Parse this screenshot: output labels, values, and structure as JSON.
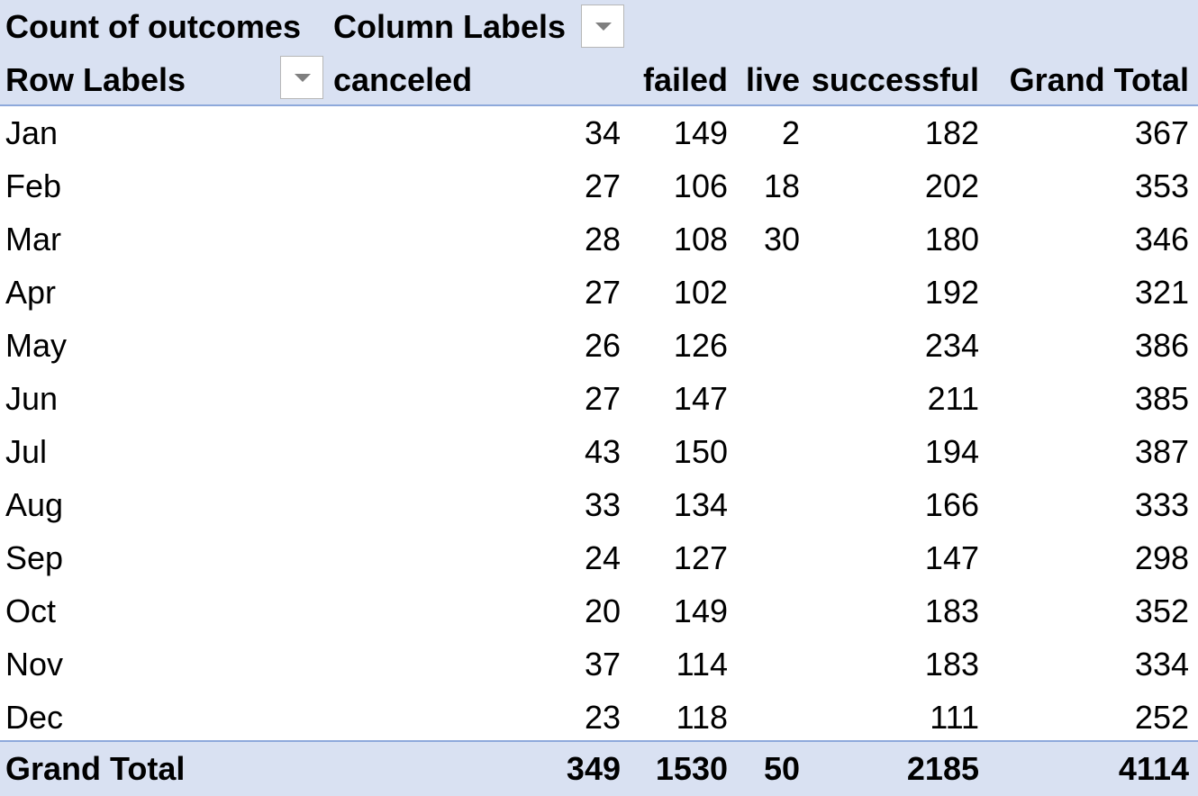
{
  "pivot": {
    "value_field": "Count of outcomes",
    "column_labels": "Column Labels",
    "row_labels": "Row Labels",
    "columns": [
      "canceled",
      "failed",
      "live",
      "successful",
      "Grand Total"
    ],
    "rows": [
      {
        "label": "Jan",
        "values": [
          "34",
          "149",
          "2",
          "182",
          "367"
        ]
      },
      {
        "label": "Feb",
        "values": [
          "27",
          "106",
          "18",
          "202",
          "353"
        ]
      },
      {
        "label": "Mar",
        "values": [
          "28",
          "108",
          "30",
          "180",
          "346"
        ]
      },
      {
        "label": "Apr",
        "values": [
          "27",
          "102",
          "",
          "192",
          "321"
        ]
      },
      {
        "label": "May",
        "values": [
          "26",
          "126",
          "",
          "234",
          "386"
        ]
      },
      {
        "label": "Jun",
        "values": [
          "27",
          "147",
          "",
          "211",
          "385"
        ]
      },
      {
        "label": "Jul",
        "values": [
          "43",
          "150",
          "",
          "194",
          "387"
        ]
      },
      {
        "label": "Aug",
        "values": [
          "33",
          "134",
          "",
          "166",
          "333"
        ]
      },
      {
        "label": "Sep",
        "values": [
          "24",
          "127",
          "",
          "147",
          "298"
        ]
      },
      {
        "label": "Oct",
        "values": [
          "20",
          "149",
          "",
          "183",
          "352"
        ]
      },
      {
        "label": "Nov",
        "values": [
          "37",
          "114",
          "",
          "183",
          "334"
        ]
      },
      {
        "label": "Dec",
        "values": [
          "23",
          "118",
          "",
          "111",
          "252"
        ]
      }
    ],
    "grand_total": {
      "label": "Grand Total",
      "values": [
        "349",
        "1530",
        "50",
        "2185",
        "4114"
      ]
    }
  },
  "colors": {
    "header_fill": "#d9e1f2",
    "rule": "#8ea9db"
  },
  "icons": {
    "filter_dropdown": "chevron-down-icon"
  }
}
